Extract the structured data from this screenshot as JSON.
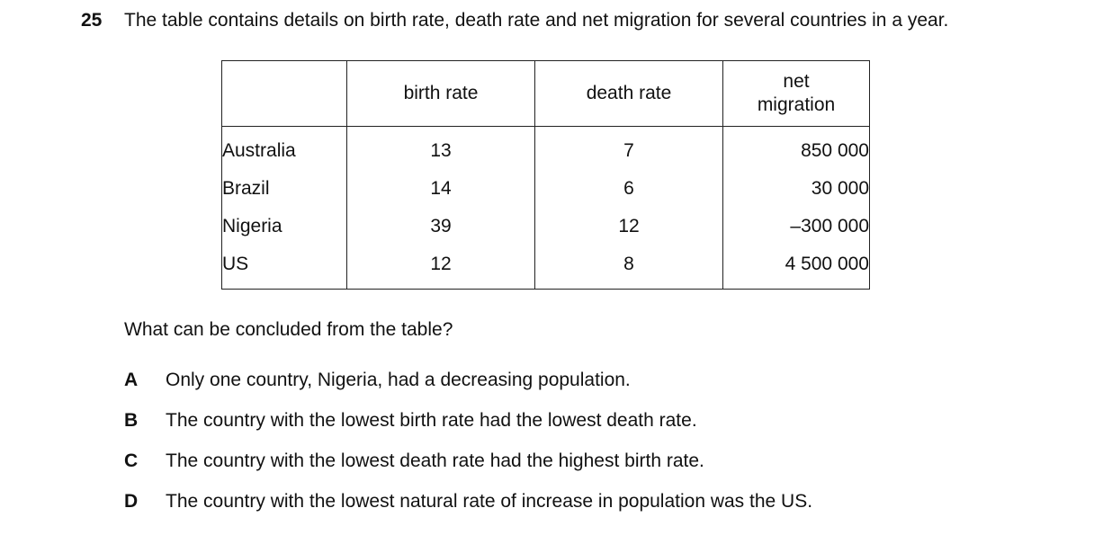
{
  "question": {
    "number": "25",
    "text": "The table contains details on birth rate, death rate and net migration for several countries in a year."
  },
  "table": {
    "headers": [
      "",
      "birth rate",
      "death rate",
      "net migration"
    ],
    "rows": [
      {
        "country": "Australia",
        "birth_rate": "13",
        "death_rate": "7",
        "net_migration": "850 000"
      },
      {
        "country": "Brazil",
        "birth_rate": "14",
        "death_rate": "6",
        "net_migration": "30 000"
      },
      {
        "country": "Nigeria",
        "birth_rate": "39",
        "death_rate": "12",
        "net_migration": "–300 000"
      },
      {
        "country": "US",
        "birth_rate": "12",
        "death_rate": "8",
        "net_migration": "4 500 000"
      }
    ]
  },
  "prompt": "What can be concluded from the table?",
  "options": [
    {
      "letter": "A",
      "text": "Only one country, Nigeria, had a decreasing population."
    },
    {
      "letter": "B",
      "text": "The country with the lowest birth rate had the lowest death rate."
    },
    {
      "letter": "C",
      "text": "The country with the lowest death rate had the highest birth rate."
    },
    {
      "letter": "D",
      "text": "The country with the lowest natural rate of increase in population was the US."
    }
  ]
}
